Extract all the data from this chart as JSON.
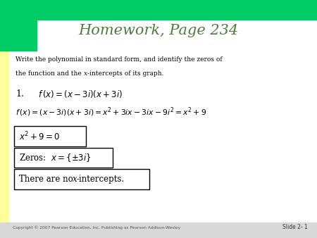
{
  "title": "Homework, Page 234",
  "title_color": "#4a7c3f",
  "title_fontsize": 15,
  "bg_color": "#ffffff",
  "top_bar_color": "#00cc66",
  "left_bar_color": "#ffff99",
  "corner_block_color": "#00cc66",
  "copyright_text": "Copyright © 2007 Pearson Education, Inc. Publishing as Pearson Addison-Wesley",
  "slide_label": "Slide 2- 1",
  "box_edge_color": "#000000",
  "text_color": "#000000",
  "bottom_bar_color": "#d8d8d8"
}
